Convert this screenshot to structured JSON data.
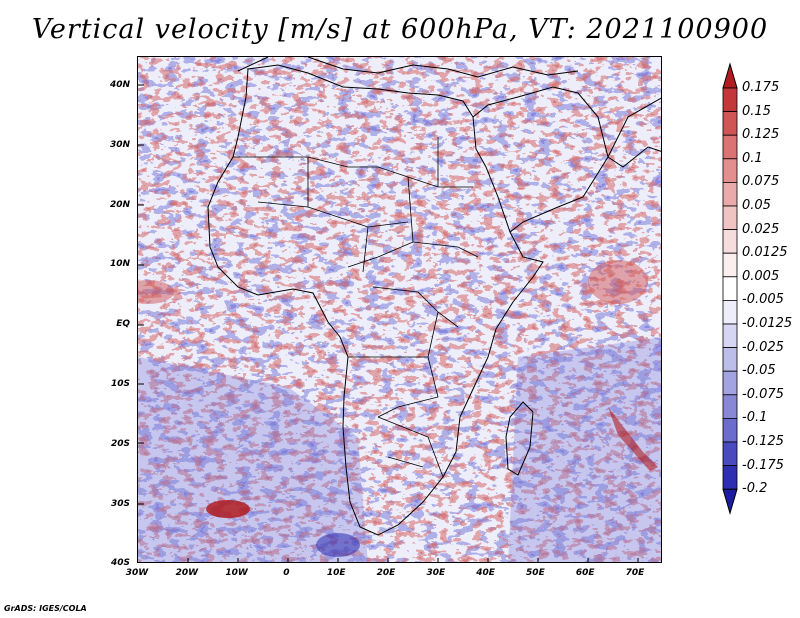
{
  "title": "Vertical velocity [m/s] at 600hPa, VT: 2021100900",
  "footer": "GrADS: IGES/COLA",
  "map": {
    "variable": "Vertical velocity",
    "units": "m/s",
    "level": "600hPa",
    "valid_time": "2021100900",
    "lat_labels": [
      "40N",
      "30N",
      "20N",
      "10N",
      "EQ",
      "10S",
      "20S",
      "30S",
      "40S"
    ],
    "lon_labels": [
      "30W",
      "20W",
      "10W",
      "0",
      "10E",
      "20E",
      "30E",
      "40E",
      "50E",
      "60E",
      "70E"
    ]
  },
  "colorbar": {
    "labels": [
      "0.175",
      "0.15",
      "0.125",
      "0.1",
      "0.075",
      "0.05",
      "0.025",
      "0.0125",
      "0.005",
      "-0.005",
      "-0.0125",
      "-0.025",
      "-0.05",
      "-0.075",
      "-0.1",
      "-0.125",
      "-0.175",
      "-0.2"
    ],
    "colors": [
      "#b01c20",
      "#c2373a",
      "#d05656",
      "#db7373",
      "#e48f8f",
      "#ebaaaa",
      "#f1c4c4",
      "#f6dcdc",
      "#fbeeee",
      "#ffffff",
      "#eeeefb",
      "#d6d6f3",
      "#bdbdea",
      "#a3a3e1",
      "#8888d7",
      "#6c6ccc",
      "#4a4ac0",
      "#2e2eb0",
      "#1c1ca0"
    ]
  }
}
